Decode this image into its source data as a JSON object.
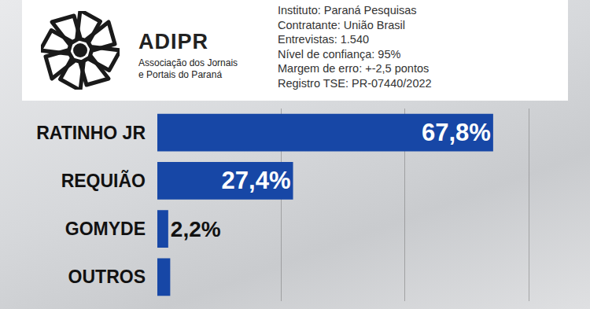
{
  "header": {
    "logo_name": "ADIPR",
    "logo_subtitle": [
      "Associação dos Jornais",
      "e Portais do Paraná"
    ],
    "details": [
      "Instituto: Paraná Pesquisas",
      "Contratante: União Brasil",
      "Entrevistas: 1.540",
      "Nível de confiança: 95%",
      "Margem de erro: +-2,5 pontos",
      "Registro TSE: PR-07440/2022"
    ]
  },
  "chart_data": {
    "type": "bar",
    "orientation": "horizontal",
    "categories": [
      "RATINHO JR",
      "REQUIÃO",
      "GOMYDE",
      "OUTROS"
    ],
    "values": [
      67.8,
      27.4,
      2.2,
      2.6
    ],
    "value_labels": [
      "67,8%",
      "27,4%",
      "2,2%",
      null
    ],
    "color": "#1747a6",
    "xlim": [
      0,
      81
    ],
    "xticks": [
      0,
      25,
      50,
      75
    ],
    "grid": true,
    "tick_labels": "y",
    "data_labels": true
  }
}
